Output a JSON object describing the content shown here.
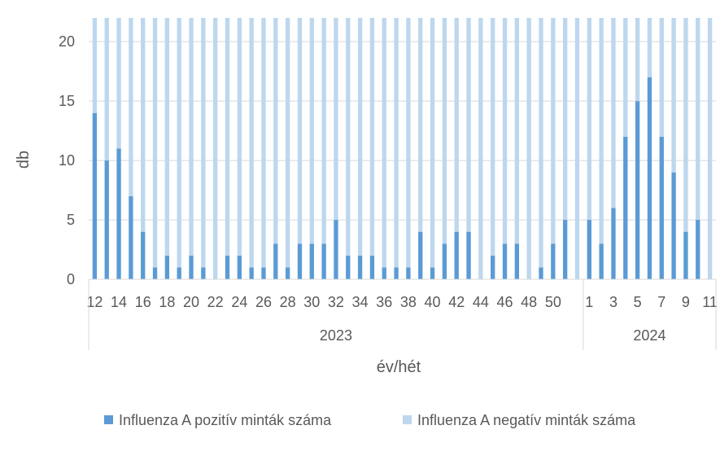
{
  "chart_data": {
    "type": "bar",
    "stacked": true,
    "xlabel": "év/hét",
    "ylabel": "db",
    "ylim": [
      0,
      22
    ],
    "yticks": [
      0,
      5,
      10,
      15,
      20
    ],
    "grid": true,
    "legend_position": "bottom",
    "groups": [
      {
        "label": "2023",
        "weeks": [
          12,
          13,
          14,
          15,
          16,
          17,
          18,
          19,
          20,
          21,
          22,
          23,
          24,
          25,
          26,
          27,
          28,
          29,
          30,
          31,
          32,
          33,
          34,
          35,
          36,
          37,
          38,
          39,
          40,
          41,
          42,
          43,
          44,
          45,
          46,
          47,
          48,
          49,
          50,
          51,
          52
        ]
      },
      {
        "label": "2024",
        "weeks": [
          1,
          2,
          3,
          4,
          5,
          6,
          7,
          8,
          9,
          10,
          11
        ]
      }
    ],
    "tick_labels": [
      "12",
      "14",
      "16",
      "18",
      "20",
      "22",
      "24",
      "26",
      "28",
      "30",
      "32",
      "34",
      "36",
      "38",
      "40",
      "42",
      "44",
      "46",
      "48",
      "50",
      "1",
      "3",
      "5",
      "7",
      "9",
      "11"
    ],
    "series": [
      {
        "name": "Influenza A pozitív minták száma",
        "color": "#5b9bd5",
        "values": [
          14,
          10,
          11,
          7,
          4,
          1,
          2,
          1,
          2,
          1,
          0,
          2,
          2,
          1,
          1,
          3,
          1,
          3,
          3,
          3,
          5,
          2,
          2,
          2,
          1,
          1,
          1,
          4,
          1,
          3,
          4,
          4,
          0,
          2,
          3,
          3,
          0,
          1,
          3,
          5,
          0,
          5,
          3,
          6,
          12,
          15,
          17,
          12,
          9,
          4,
          5,
          0
        ]
      },
      {
        "name": "Influenza A negatív minták száma",
        "color": "#bdd7ee",
        "values": [
          8,
          12,
          11,
          15,
          18,
          21,
          20,
          21,
          20,
          21,
          22,
          20,
          20,
          21,
          21,
          19,
          21,
          19,
          19,
          19,
          17,
          20,
          20,
          20,
          21,
          21,
          21,
          18,
          21,
          19,
          18,
          18,
          22,
          20,
          19,
          19,
          22,
          21,
          19,
          17,
          22,
          17,
          19,
          16,
          10,
          7,
          5,
          10,
          13,
          18,
          17,
          22
        ]
      }
    ]
  }
}
